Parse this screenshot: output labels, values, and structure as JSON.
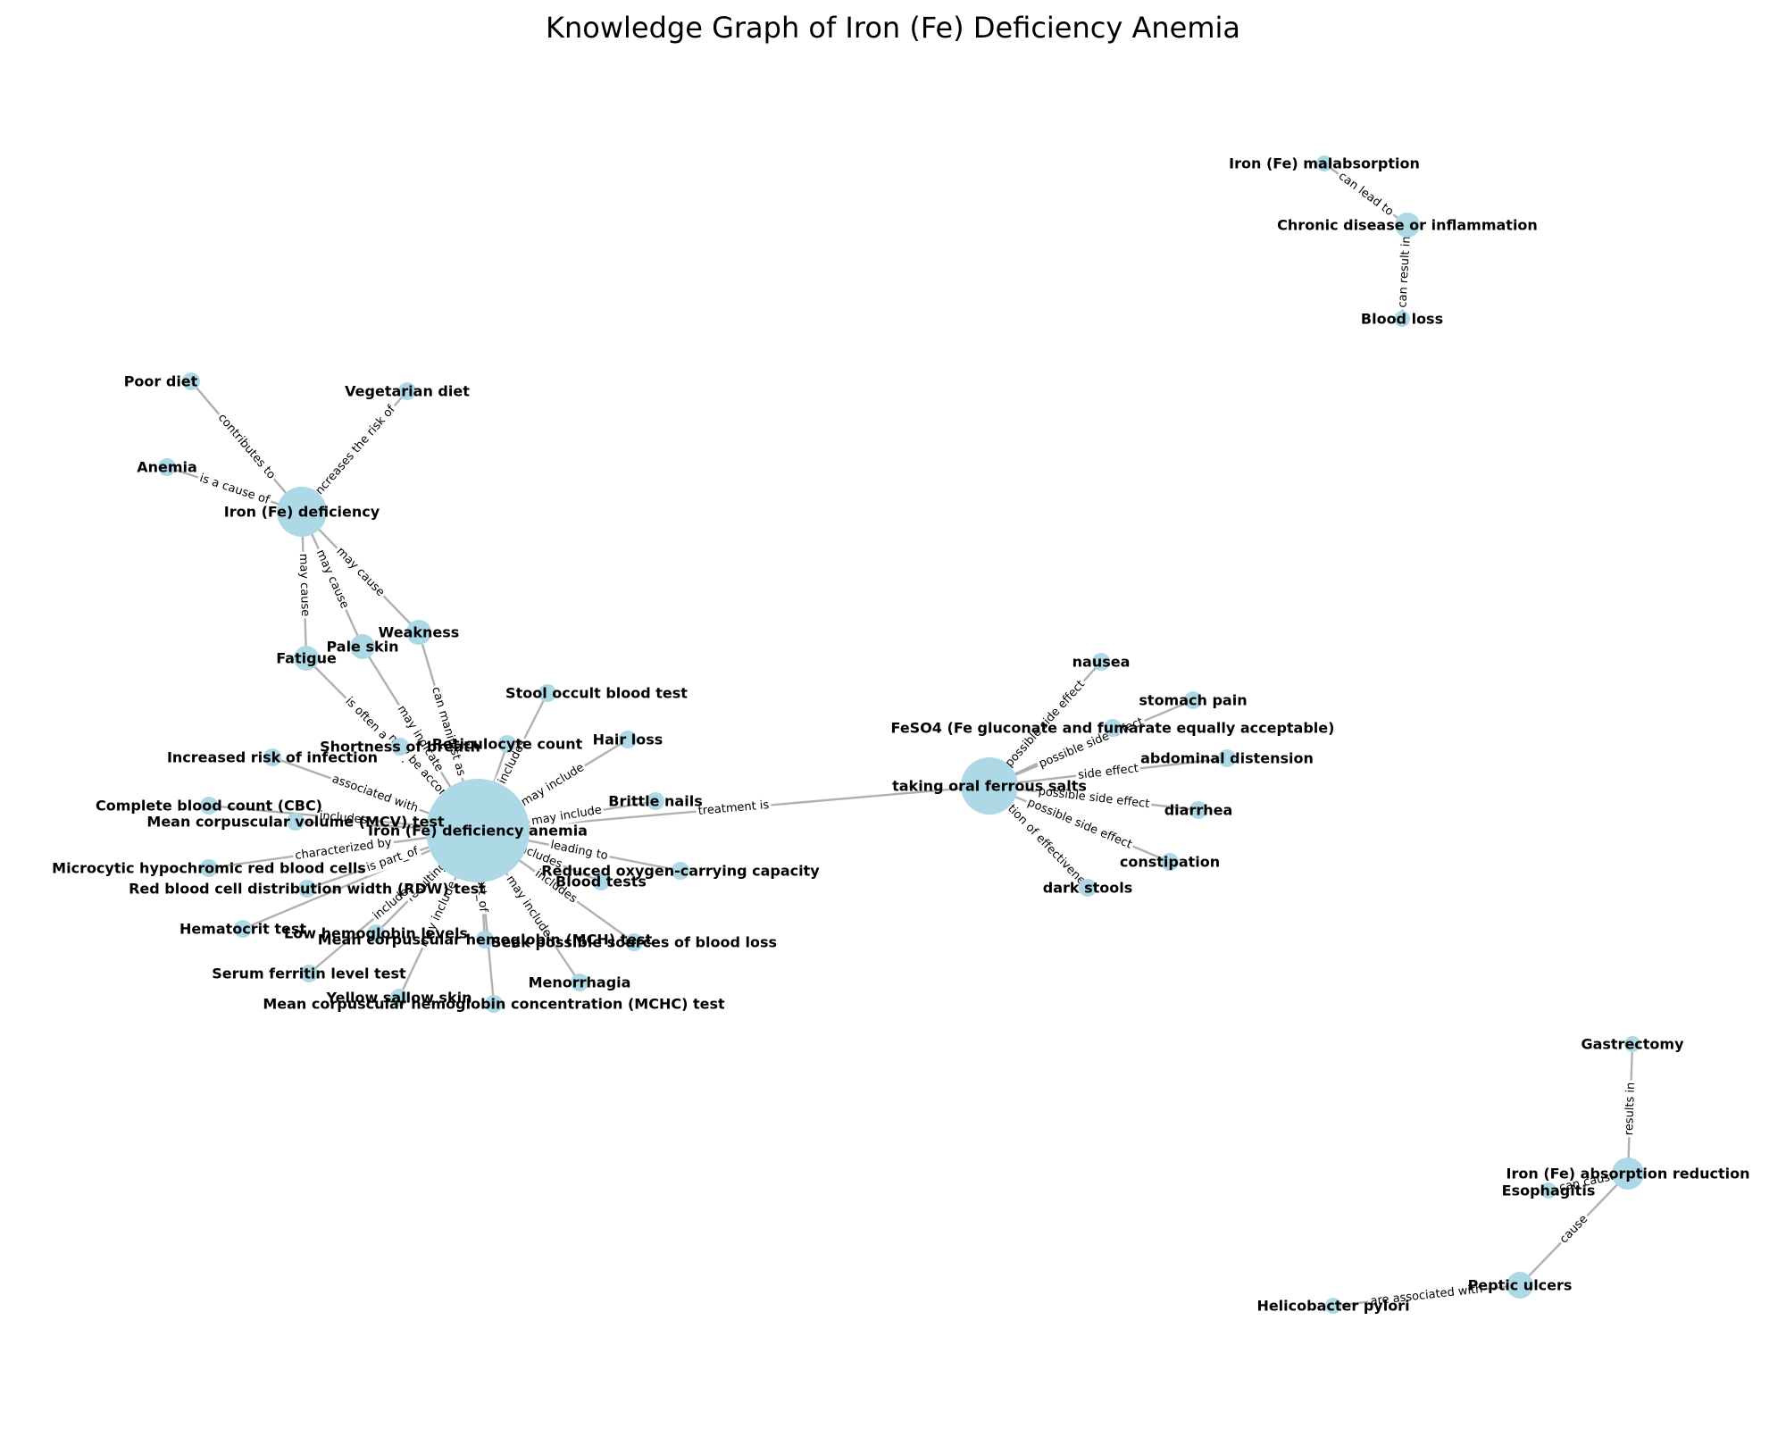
{
  "title": "Knowledge Graph of Iron (Fe) Deficiency Anemia",
  "colors": {
    "node": "#add8e6",
    "edge": "#b0b0b0",
    "text": "#000000",
    "background": "#ffffff"
  },
  "nodes": [
    {
      "id": "ida",
      "label": "Iron (Fe) deficiency anemia"
    },
    {
      "id": "oral",
      "label": "taking oral ferrous salts"
    },
    {
      "id": "def",
      "label": "Iron (Fe) deficiency"
    },
    {
      "id": "poor",
      "label": "Poor diet"
    },
    {
      "id": "veg",
      "label": "Vegetarian diet"
    },
    {
      "id": "anemia",
      "label": "Anemia"
    },
    {
      "id": "fatigue",
      "label": "Fatigue"
    },
    {
      "id": "pale",
      "label": "Pale skin"
    },
    {
      "id": "weak",
      "label": "Weakness"
    },
    {
      "id": "stool",
      "label": "Stool occult blood test"
    },
    {
      "id": "retic",
      "label": "Reticulocyte count"
    },
    {
      "id": "sob",
      "label": "Shortness of breath"
    },
    {
      "id": "hair",
      "label": "Hair loss"
    },
    {
      "id": "infect",
      "label": "Increased risk of infection"
    },
    {
      "id": "brittle",
      "label": "Brittle nails"
    },
    {
      "id": "cbc",
      "label": "Complete blood count (CBC)"
    },
    {
      "id": "mcv",
      "label": "Mean corpuscular volume (MCV) test"
    },
    {
      "id": "micro",
      "label": "Microcytic hypochromic red blood cells"
    },
    {
      "id": "rdw",
      "label": "Red blood cell distribution width (RDW) test"
    },
    {
      "id": "reduced",
      "label": "Reduced oxygen-carrying capacity"
    },
    {
      "id": "bt",
      "label": "Blood tests"
    },
    {
      "id": "hct",
      "label": "Hematocrit test"
    },
    {
      "id": "lowhb",
      "label": "Low hemoglobin levels"
    },
    {
      "id": "mch",
      "label": "Mean corpuscular hemoglobin (MCH) test"
    },
    {
      "id": "seek",
      "label": "Seek possible sources of blood loss"
    },
    {
      "id": "serum",
      "label": "Serum ferritin level test"
    },
    {
      "id": "menor",
      "label": "Menorrhagia"
    },
    {
      "id": "yellow",
      "label": "Yellow sallow skin"
    },
    {
      "id": "mchc",
      "label": "Mean corpuscular hemoglobin concentration (MCHC) test"
    },
    {
      "id": "nausea",
      "label": "nausea"
    },
    {
      "id": "stomach",
      "label": "stomach pain"
    },
    {
      "id": "feso4",
      "label": "FeSO4 (Fe gluconate and fumarate equally acceptable)"
    },
    {
      "id": "abdom",
      "label": "abdominal distension"
    },
    {
      "id": "diarr",
      "label": "diarrhea"
    },
    {
      "id": "const",
      "label": "constipation"
    },
    {
      "id": "dark",
      "label": "dark stools"
    },
    {
      "id": "malab",
      "label": "Iron (Fe) malabsorption"
    },
    {
      "id": "chronic",
      "label": "Chronic disease or inflammation"
    },
    {
      "id": "bloodloss",
      "label": "Blood loss"
    },
    {
      "id": "gastr",
      "label": "Gastrectomy"
    },
    {
      "id": "absred",
      "label": "Iron (Fe) absorption reduction"
    },
    {
      "id": "esoph",
      "label": "Esophagitis"
    },
    {
      "id": "peptic",
      "label": "Peptic ulcers"
    },
    {
      "id": "hpylori",
      "label": "Helicobacter pylori"
    }
  ],
  "edges": [
    {
      "source": "ida",
      "target": "oral",
      "label": "treatment is"
    },
    {
      "source": "poor",
      "target": "def",
      "label": "contributes to"
    },
    {
      "source": "veg",
      "target": "def",
      "label": "increases the risk of"
    },
    {
      "source": "anemia",
      "target": "def",
      "label": "is a cause of"
    },
    {
      "source": "def",
      "target": "fatigue",
      "label": "may cause"
    },
    {
      "source": "def",
      "target": "pale",
      "label": "may cause"
    },
    {
      "source": "def",
      "target": "weak",
      "label": "may cause"
    },
    {
      "source": "fatigue",
      "target": "ida",
      "label": "is often a symptom of"
    },
    {
      "source": "pale",
      "target": "ida",
      "label": "may indicate"
    },
    {
      "source": "weak",
      "target": "ida",
      "label": "can manifest as"
    },
    {
      "source": "ida",
      "target": "stool",
      "label": "includes"
    },
    {
      "source": "ida",
      "target": "retic",
      "label": ""
    },
    {
      "source": "ida",
      "target": "sob",
      "label": "may be accompanied by"
    },
    {
      "source": "ida",
      "target": "hair",
      "label": "may include"
    },
    {
      "source": "ida",
      "target": "infect",
      "label": "associated with"
    },
    {
      "source": "ida",
      "target": "brittle",
      "label": "may include"
    },
    {
      "source": "ida",
      "target": "cbc",
      "label": "includes"
    },
    {
      "source": "ida",
      "target": "mcv",
      "label": ""
    },
    {
      "source": "ida",
      "target": "micro",
      "label": "characterized by"
    },
    {
      "source": "ida",
      "target": "rdw",
      "label": "is part_of"
    },
    {
      "source": "ida",
      "target": "reduced",
      "label": "leading to"
    },
    {
      "source": "ida",
      "target": "bt",
      "label": "includes"
    },
    {
      "source": "ida",
      "target": "hct",
      "label": ""
    },
    {
      "source": "ida",
      "target": "lowhb",
      "label": "resulting"
    },
    {
      "source": "ida",
      "target": "mch",
      "label": "is part_of"
    },
    {
      "source": "ida",
      "target": "seek",
      "label": "includes"
    },
    {
      "source": "ida",
      "target": "serum",
      "label": "includes"
    },
    {
      "source": "ida",
      "target": "menor",
      "label": "may include"
    },
    {
      "source": "ida",
      "target": "yellow",
      "label": "may include"
    },
    {
      "source": "ida",
      "target": "mchc",
      "label": ""
    },
    {
      "source": "oral",
      "target": "nausea",
      "label": "possible side effect"
    },
    {
      "source": "oral",
      "target": "stomach",
      "label": "possible side effect"
    },
    {
      "source": "oral",
      "target": "feso4",
      "label": ""
    },
    {
      "source": "oral",
      "target": "abdom",
      "label": "side effect"
    },
    {
      "source": "oral",
      "target": "diarr",
      "label": "possible side effect"
    },
    {
      "source": "oral",
      "target": "const",
      "label": "possible side effect"
    },
    {
      "source": "oral",
      "target": "dark",
      "label": "indication of effectiveness"
    },
    {
      "source": "malab",
      "target": "chronic",
      "label": "can lead to"
    },
    {
      "source": "chronic",
      "target": "bloodloss",
      "label": "can result in"
    },
    {
      "source": "gastr",
      "target": "absred",
      "label": "results in"
    },
    {
      "source": "esoph",
      "target": "absred",
      "label": "can cause"
    },
    {
      "source": "absred",
      "target": "peptic",
      "label": "cause"
    },
    {
      "source": "hpylori",
      "target": "peptic",
      "label": "are associated with"
    }
  ]
}
